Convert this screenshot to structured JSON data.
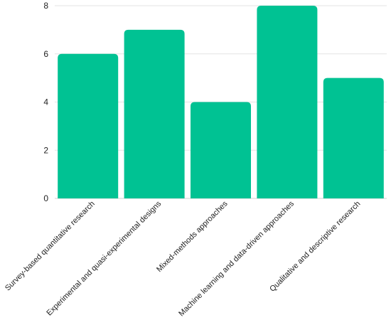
{
  "chart_data": {
    "type": "bar",
    "title": "",
    "xlabel": "",
    "ylabel": "",
    "categories": [
      "Survey-based quantitative research",
      "Experimental and quasi-experimental designs",
      "Mixed-methods approaches",
      "Machine learning and data-driven approaches",
      "Qualitative and descriptive research"
    ],
    "values": [
      6,
      7,
      4,
      8,
      5
    ],
    "ylim": [
      0,
      8
    ],
    "yticks": [
      0,
      2,
      4,
      6,
      8
    ],
    "grid": true,
    "legend": "none",
    "bar_color": "#00c293"
  }
}
